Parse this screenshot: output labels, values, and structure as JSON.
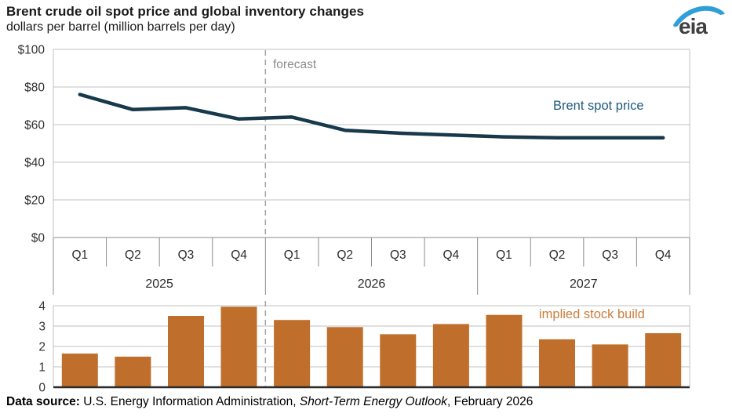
{
  "header": {
    "title": "Brent crude oil spot price and global inventory changes",
    "subtitle": "dollars per barrel (million barrels per day)",
    "logo_text": "eia"
  },
  "axis": {
    "quarter_labels": [
      "Q1",
      "Q2",
      "Q3",
      "Q4",
      "Q1",
      "Q2",
      "Q3",
      "Q4",
      "Q1",
      "Q2",
      "Q3",
      "Q4"
    ],
    "year_labels": [
      "2025",
      "2026",
      "2027"
    ]
  },
  "chart_data": [
    {
      "type": "line",
      "name": "Brent spot price",
      "units": "dollars per barrel",
      "categories": [
        "2025 Q1",
        "2025 Q2",
        "2025 Q3",
        "2025 Q4",
        "2026 Q1",
        "2026 Q2",
        "2026 Q3",
        "2026 Q4",
        "2027 Q1",
        "2027 Q2",
        "2027 Q3",
        "2027 Q4"
      ],
      "values": [
        76,
        68,
        69,
        63,
        64,
        57,
        55.5,
        54.5,
        53.5,
        53,
        53,
        53
      ],
      "ylim": [
        0,
        100
      ],
      "ytick_values": [
        0,
        20,
        40,
        60,
        80,
        100
      ],
      "ytick_labels": [
        "$0",
        "$20",
        "$40",
        "$60",
        "$80",
        "$100"
      ],
      "annotation": "forecast",
      "forecast_start": "2026 Q1",
      "grid": "on",
      "color": "#17394b",
      "label_color": "#1e5b7e"
    },
    {
      "type": "bar",
      "name": "implied stock build",
      "units": "million barrels per day",
      "categories": [
        "2025 Q1",
        "2025 Q2",
        "2025 Q3",
        "2025 Q4",
        "2026 Q1",
        "2026 Q2",
        "2026 Q3",
        "2026 Q4",
        "2027 Q1",
        "2027 Q2",
        "2027 Q3",
        "2027 Q4"
      ],
      "values": [
        1.65,
        1.5,
        3.5,
        3.95,
        3.3,
        2.95,
        2.6,
        3.1,
        3.55,
        2.35,
        2.1,
        2.65
      ],
      "ylim": [
        0,
        4
      ],
      "ytick_values": [
        0,
        1,
        2,
        3,
        4
      ],
      "ytick_labels": [
        "0",
        "1",
        "2",
        "3",
        "4"
      ],
      "grid": "on",
      "color": "#bf6f2b",
      "label_color": "#c87e3c"
    }
  ],
  "footer": {
    "label_bold": "Data source:",
    "text_regular": " U.S. Energy Information Administration, ",
    "text_italic": "Short-Term Energy Outlook",
    "text_end": ", February 2026"
  },
  "colors": {
    "grid": "#c2c2c2",
    "axis_table": "#8c8c8c",
    "dashed": "#a3a3a3",
    "forecast_text": "#8c8c8c",
    "tick_text": "#333333",
    "bar_baseline": "#2b2b2b",
    "logo_blue": "#2f9fda",
    "logo_text": "#404040"
  }
}
